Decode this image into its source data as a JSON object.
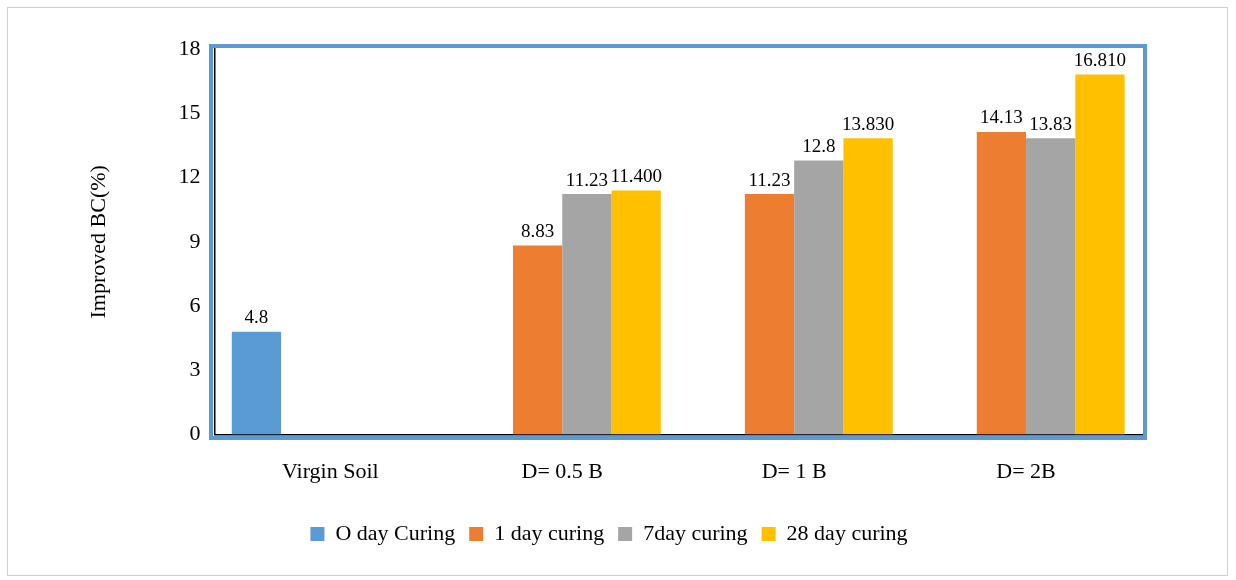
{
  "chart_data": {
    "type": "bar",
    "ylabel": "Improved BC(%)",
    "categories": [
      "Virgin Soil",
      "D= 0.5 B",
      "D= 1 B",
      "D= 2B"
    ],
    "series": [
      {
        "name": "O day Curing",
        "color": "#5b9bd5",
        "values": [
          4.8,
          null,
          null,
          null
        ],
        "value_labels": [
          "4.8",
          null,
          null,
          null
        ]
      },
      {
        "name": "1 day curing",
        "color": "#ed7d31",
        "values": [
          null,
          8.83,
          11.23,
          14.13
        ],
        "value_labels": [
          null,
          "8.83",
          "11.23",
          "14.13"
        ]
      },
      {
        "name": "7day curing",
        "color": "#a5a5a5",
        "values": [
          null,
          11.23,
          12.8,
          13.83
        ],
        "value_labels": [
          null,
          "11.23",
          "12.8",
          "13.83"
        ]
      },
      {
        "name": "28 day curing",
        "color": "#ffc000",
        "values": [
          null,
          11.4,
          13.83,
          16.81
        ],
        "value_labels": [
          null,
          "11.400",
          "13.830",
          "16.810"
        ]
      }
    ],
    "ylim": [
      0,
      18
    ],
    "yticks": [
      0,
      3,
      6,
      9,
      12,
      15,
      18
    ],
    "grid": false,
    "legend": "bottom"
  }
}
